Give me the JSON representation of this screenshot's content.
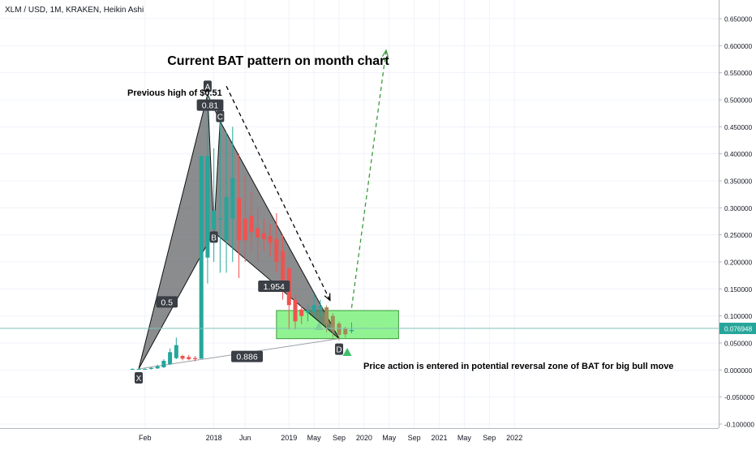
{
  "header": {
    "symbol": "XLM / USD, 1M, KRAKEN, Heikin Ashi"
  },
  "annotations": {
    "title": "Current BAT pattern on month chart",
    "previous_high": "Previous high of $0.51",
    "price_action": "Price action is entered in potential reversal zone of BAT for big bull move"
  },
  "colors": {
    "up_candle": "#26a69a",
    "down_candle": "#ef5350",
    "down_candle_muted": "#b23a3a",
    "pattern_fill": "#5d6063",
    "zone_fill": "#7ef07e",
    "zone_stroke": "#3c9a3c",
    "price_line": "#7dc3b8",
    "price_tag": "#26a69a",
    "label_bg": "#3a3e45",
    "projection": "#3c9a3c",
    "axis_text": "#131722",
    "grid": "#f0f3fa"
  },
  "chart_data": {
    "type": "candlestick",
    "series_style": "Heikin Ashi",
    "ylim": [
      -0.1,
      0.68
    ],
    "y_ticks": [
      {
        "value": 0.65,
        "label": "0.650000"
      },
      {
        "value": 0.6,
        "label": "0.600000"
      },
      {
        "value": 0.55,
        "label": "0.550000"
      },
      {
        "value": 0.5,
        "label": "0.500000"
      },
      {
        "value": 0.45,
        "label": "0.450000"
      },
      {
        "value": 0.4,
        "label": "0.400000"
      },
      {
        "value": 0.35,
        "label": "0.350000"
      },
      {
        "value": 0.3,
        "label": "0.300000"
      },
      {
        "value": 0.25,
        "label": "0.250000"
      },
      {
        "value": 0.2,
        "label": "0.200000"
      },
      {
        "value": 0.15,
        "label": "0.150000"
      },
      {
        "value": 0.1,
        "label": "0.100000"
      },
      {
        "value": 0.05,
        "label": "0.050000"
      },
      {
        "value": 0.0,
        "label": "0.000000"
      },
      {
        "value": -0.05,
        "label": "-0.050000"
      },
      {
        "value": -0.1,
        "label": "-0.100000"
      }
    ],
    "x_ticks": [
      {
        "month": 1,
        "label": "Feb"
      },
      {
        "month": 12,
        "label": "2018"
      },
      {
        "month": 17,
        "label": "Jun"
      },
      {
        "month": 24,
        "label": "2019"
      },
      {
        "month": 28,
        "label": "May"
      },
      {
        "month": 32,
        "label": "Sep"
      },
      {
        "month": 36,
        "label": "2020"
      },
      {
        "month": 40,
        "label": "May"
      },
      {
        "month": 44,
        "label": "Sep"
      },
      {
        "month": 48,
        "label": "2021"
      },
      {
        "month": 52,
        "label": "May"
      },
      {
        "month": 56,
        "label": "Sep"
      },
      {
        "month": 60,
        "label": "2022"
      }
    ],
    "candles": [
      {
        "m": -1.0,
        "o": 0.002,
        "h": 0.003,
        "l": 0.001,
        "c": 0.002
      },
      {
        "m": 0.0,
        "o": 0.002,
        "h": 0.003,
        "l": 0.001,
        "c": 0.002
      },
      {
        "m": 1.0,
        "o": 0.002,
        "h": 0.003,
        "l": 0.001,
        "c": 0.002
      },
      {
        "m": 2.0,
        "o": 0.002,
        "h": 0.005,
        "l": 0.001,
        "c": 0.004
      },
      {
        "m": 3.0,
        "o": 0.003,
        "h": 0.01,
        "l": 0.002,
        "c": 0.007
      },
      {
        "m": 4.0,
        "o": 0.005,
        "h": 0.02,
        "l": 0.004,
        "c": 0.017
      },
      {
        "m": 5.0,
        "o": 0.011,
        "h": 0.04,
        "l": 0.009,
        "c": 0.033
      },
      {
        "m": 6.0,
        "o": 0.022,
        "h": 0.06,
        "l": 0.02,
        "c": 0.046
      },
      {
        "m": 7.0,
        "o": 0.026,
        "h": 0.028,
        "l": 0.018,
        "c": 0.021
      },
      {
        "m": 8.0,
        "o": 0.024,
        "h": 0.028,
        "l": 0.018,
        "c": 0.02
      },
      {
        "m": 9.0,
        "o": 0.022,
        "h": 0.026,
        "l": 0.016,
        "c": 0.02
      },
      {
        "m": 10.0,
        "o": 0.021,
        "h": 0.396,
        "l": 0.021,
        "c": 0.396
      },
      {
        "m": 11.0,
        "o": 0.208,
        "h": 0.51,
        "l": 0.16,
        "c": 0.396
      },
      {
        "m": 12.0,
        "o": 0.26,
        "h": 0.41,
        "l": 0.2,
        "c": 0.295
      },
      {
        "m": 13.0,
        "o": 0.278,
        "h": 0.46,
        "l": 0.18,
        "c": 0.28
      },
      {
        "m": 14.0,
        "o": 0.24,
        "h": 0.44,
        "l": 0.18,
        "c": 0.32
      },
      {
        "m": 15.0,
        "o": 0.28,
        "h": 0.45,
        "l": 0.2,
        "c": 0.355
      },
      {
        "m": 16.0,
        "o": 0.318,
        "h": 0.4,
        "l": 0.17,
        "c": 0.24
      },
      {
        "m": 17.0,
        "o": 0.28,
        "h": 0.36,
        "l": 0.2,
        "c": 0.24
      },
      {
        "m": 18.0,
        "o": 0.285,
        "h": 0.33,
        "l": 0.22,
        "c": 0.255
      },
      {
        "m": 19.0,
        "o": 0.262,
        "h": 0.3,
        "l": 0.2,
        "c": 0.245
      },
      {
        "m": 20.0,
        "o": 0.253,
        "h": 0.28,
        "l": 0.22,
        "c": 0.242
      },
      {
        "m": 21.0,
        "o": 0.248,
        "h": 0.27,
        "l": 0.21,
        "c": 0.235
      },
      {
        "m": 22.0,
        "o": 0.242,
        "h": 0.29,
        "l": 0.18,
        "c": 0.2
      },
      {
        "m": 23.0,
        "o": 0.22,
        "h": 0.25,
        "l": 0.13,
        "c": 0.155
      },
      {
        "m": 24.0,
        "o": 0.188,
        "h": 0.19,
        "l": 0.075,
        "c": 0.12
      },
      {
        "m": 25.0,
        "o": 0.13,
        "h": 0.14,
        "l": 0.075,
        "c": 0.09
      },
      {
        "m": 26.0,
        "o": 0.112,
        "h": 0.12,
        "l": 0.085,
        "c": 0.1
      },
      {
        "m": 27.0,
        "o": 0.106,
        "h": 0.12,
        "l": 0.09,
        "c": 0.11
      },
      {
        "m": 28.0,
        "o": 0.108,
        "h": 0.14,
        "l": 0.1,
        "c": 0.12
      },
      {
        "m": 29.0,
        "o": 0.114,
        "h": 0.13,
        "l": 0.1,
        "c": 0.118
      },
      {
        "m": 30.0,
        "o": 0.116,
        "h": 0.12,
        "l": 0.07,
        "c": 0.085
      },
      {
        "m": 31.0,
        "o": 0.1,
        "h": 0.105,
        "l": 0.06,
        "c": 0.072
      },
      {
        "m": 32.0,
        "o": 0.086,
        "h": 0.09,
        "l": 0.055,
        "c": 0.065
      },
      {
        "m": 33.0,
        "o": 0.076,
        "h": 0.08,
        "l": 0.06,
        "c": 0.066
      },
      {
        "m": 34.0,
        "o": 0.072,
        "h": 0.088,
        "l": 0.068,
        "c": 0.074
      }
    ],
    "pattern_points": [
      {
        "label": "X",
        "m": 0.0,
        "y": 0.002
      },
      {
        "label": "A",
        "m": 11.0,
        "y": 0.51
      },
      {
        "label": "B",
        "m": 12.0,
        "y": 0.255
      },
      {
        "label": "C",
        "m": 13.0,
        "y": 0.46
      },
      {
        "label": "D",
        "m": 32.0,
        "y": 0.058
      }
    ],
    "ratios": [
      {
        "value": "0.5",
        "m": 4.5,
        "y": 0.126
      },
      {
        "value": "0.81",
        "m": 11.4,
        "y": 0.49
      },
      {
        "value": "1.954",
        "m": 21.6,
        "y": 0.155
      },
      {
        "value": "0.886",
        "m": 17.3,
        "y": 0.025
      }
    ],
    "reversal_zone": {
      "m_start": 22.0,
      "m_end": 41.5,
      "y_top": 0.11,
      "y_bottom": 0.058
    },
    "current_price": {
      "value": 0.076948,
      "label": "0.076948"
    },
    "projection_arrow": {
      "from_m": 34.0,
      "from_y": 0.115,
      "to_m": 39.5,
      "to_y": 0.59
    },
    "trend_arrow": {
      "from_m": 14.0,
      "from_y": 0.525,
      "to_m": 30.5,
      "to_y": 0.13
    },
    "signal_markers": [
      {
        "m": 28.8,
        "y": 0.08
      },
      {
        "m": 33.3,
        "y": 0.032
      }
    ]
  }
}
